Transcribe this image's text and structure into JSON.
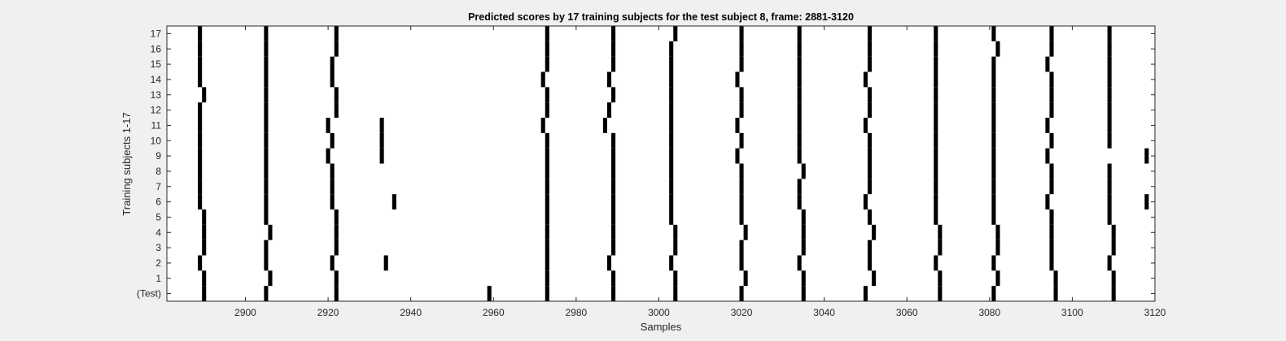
{
  "chart_data": {
    "type": "raster",
    "title": "Predicted scores by 17 training subjects for the test subject 8, frame: 2881-3120",
    "xlabel": "Samples",
    "ylabel": "Training subjects 1-17",
    "xlim": [
      2881,
      3120
    ],
    "xticks": [
      2900,
      2920,
      2940,
      2960,
      2980,
      3000,
      3020,
      3040,
      3060,
      3080,
      3100,
      3120
    ],
    "rows": [
      "(Test)",
      "1",
      "2",
      "3",
      "4",
      "5",
      "6",
      "7",
      "8",
      "9",
      "10",
      "11",
      "12",
      "13",
      "14",
      "15",
      "16",
      "17"
    ],
    "grid": false,
    "legend": "none",
    "mark_color": "#000000",
    "background_color": "#ffffff",
    "series": [
      {
        "name": "(Test)",
        "x": [
          2890,
          2905,
          2922,
          2959,
          2973,
          2989,
          3004,
          3020,
          3035,
          3050,
          3068,
          3081,
          3096,
          3110
        ]
      },
      {
        "name": "1",
        "x": [
          2890,
          2906,
          2922,
          2973,
          2989,
          3004,
          3021,
          3035,
          3052,
          3068,
          3082,
          3096,
          3110
        ]
      },
      {
        "name": "2",
        "x": [
          2889,
          2905,
          2921,
          2934,
          2973,
          2988,
          3003,
          3020,
          3034,
          3051,
          3067,
          3081,
          3095,
          3109
        ]
      },
      {
        "name": "3",
        "x": [
          2890,
          2905,
          2922,
          2973,
          2989,
          3004,
          3020,
          3035,
          3051,
          3068,
          3082,
          3095,
          3110
        ]
      },
      {
        "name": "4",
        "x": [
          2890,
          2906,
          2922,
          2973,
          2989,
          3004,
          3021,
          3035,
          3052,
          3068,
          3082,
          3095,
          3110
        ]
      },
      {
        "name": "5",
        "x": [
          2890,
          2905,
          2922,
          2973,
          2989,
          3003,
          3020,
          3035,
          3051,
          3067,
          3081,
          3095,
          3109
        ]
      },
      {
        "name": "6",
        "x": [
          2889,
          2905,
          2921,
          2936,
          2973,
          2989,
          3003,
          3020,
          3034,
          3050,
          3067,
          3081,
          3094,
          3109,
          3118
        ]
      },
      {
        "name": "7",
        "x": [
          2889,
          2905,
          2921,
          2973,
          2989,
          3003,
          3020,
          3034,
          3051,
          3067,
          3081,
          3095,
          3109
        ]
      },
      {
        "name": "8",
        "x": [
          2889,
          2905,
          2921,
          2973,
          2989,
          3003,
          3020,
          3035,
          3051,
          3067,
          3081,
          3095,
          3109
        ]
      },
      {
        "name": "9",
        "x": [
          2889,
          2905,
          2920,
          2933,
          2973,
          2989,
          3003,
          3019,
          3034,
          3051,
          3067,
          3081,
          3094,
          3118
        ]
      },
      {
        "name": "10",
        "x": [
          2889,
          2905,
          2921,
          2933,
          2973,
          2989,
          3003,
          3020,
          3034,
          3051,
          3067,
          3081,
          3095,
          3109
        ]
      },
      {
        "name": "11",
        "x": [
          2889,
          2905,
          2920,
          2933,
          2972,
          2987,
          3003,
          3019,
          3034,
          3050,
          3067,
          3081,
          3094,
          3109
        ]
      },
      {
        "name": "12",
        "x": [
          2889,
          2905,
          2922,
          2973,
          2988,
          3003,
          3020,
          3034,
          3051,
          3067,
          3081,
          3095,
          3109
        ]
      },
      {
        "name": "13",
        "x": [
          2890,
          2905,
          2922,
          2973,
          2989,
          3003,
          3020,
          3034,
          3051,
          3067,
          3081,
          3095,
          3109
        ]
      },
      {
        "name": "14",
        "x": [
          2889,
          2905,
          2921,
          2972,
          2988,
          3003,
          3019,
          3034,
          3050,
          3067,
          3081,
          3095,
          3109
        ]
      },
      {
        "name": "15",
        "x": [
          2889,
          2905,
          2921,
          2973,
          2989,
          3003,
          3020,
          3034,
          3051,
          3067,
          3081,
          3094,
          3109
        ]
      },
      {
        "name": "16",
        "x": [
          2889,
          2905,
          2922,
          2973,
          2989,
          3003,
          3020,
          3034,
          3051,
          3067,
          3082,
          3095,
          3109
        ]
      },
      {
        "name": "17",
        "x": [
          2889,
          2905,
          2922,
          2973,
          2989,
          3004,
          3020,
          3034,
          3051,
          3067,
          3081,
          3095,
          3109
        ]
      }
    ]
  }
}
